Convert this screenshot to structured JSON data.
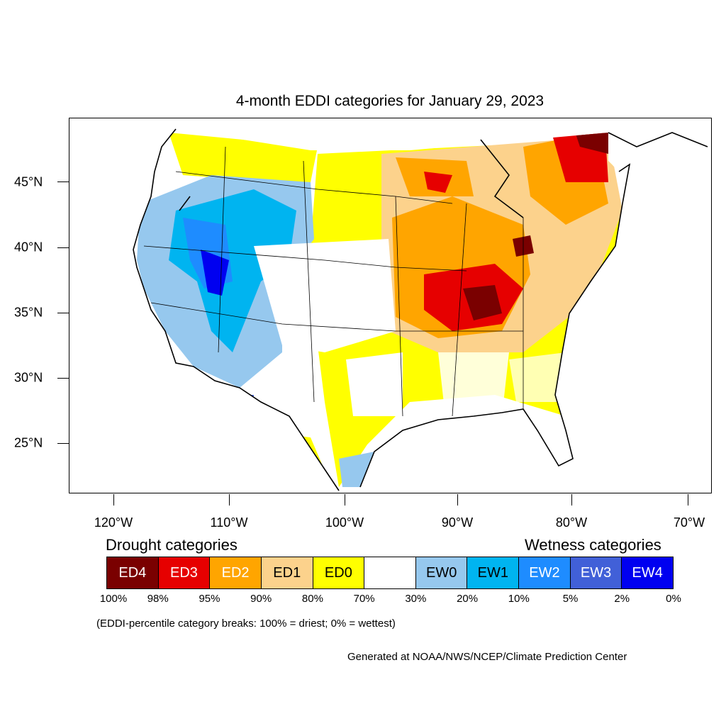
{
  "title": "4-month EDDI categories for January 29, 2023",
  "axes": {
    "lat_labels": [
      "45°N",
      "40°N",
      "35°N",
      "30°N",
      "25°N"
    ],
    "lon_labels": [
      "120°W",
      "110°W",
      "100°W",
      "90°W",
      "80°W",
      "70°W"
    ]
  },
  "legend": {
    "drought_heading": "Drought categories",
    "wetness_heading": "Wetness categories",
    "categories": [
      {
        "label": "ED4",
        "color": "#7a0000",
        "text_color": "#ffffff"
      },
      {
        "label": "ED3",
        "color": "#e60000",
        "text_color": "#ffffff"
      },
      {
        "label": "ED2",
        "color": "#ffa500",
        "text_color": "#ffffff"
      },
      {
        "label": "ED1",
        "color": "#fcd28c",
        "text_color": "#000000"
      },
      {
        "label": "ED0",
        "color": "#ffff00",
        "text_color": "#000000"
      },
      {
        "label": "",
        "color": "#ffffff",
        "text_color": "#000000"
      },
      {
        "label": "EW0",
        "color": "#96c8ee",
        "text_color": "#000000"
      },
      {
        "label": "EW1",
        "color": "#00b4f0",
        "text_color": "#000000"
      },
      {
        "label": "EW2",
        "color": "#1e8cff",
        "text_color": "#ffffff"
      },
      {
        "label": "EW3",
        "color": "#4160d8",
        "text_color": "#ffffff"
      },
      {
        "label": "EW4",
        "color": "#0000f0",
        "text_color": "#ffffff"
      }
    ],
    "breaks": [
      "100%",
      "98%",
      "95%",
      "90%",
      "80%",
      "70%",
      "30%",
      "20%",
      "10%",
      "5%",
      "2%",
      "0%"
    ]
  },
  "note": "(EDDI-percentile category breaks: 100% = driest; 0% = wettest)",
  "credit": "Generated at NOAA/NWS/NCEP/Climate Prediction Center"
}
